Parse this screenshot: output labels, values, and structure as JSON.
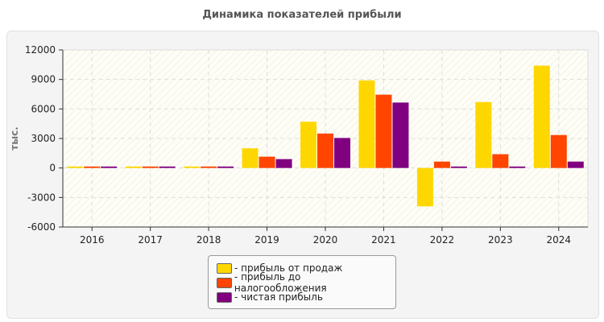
{
  "chart_data": {
    "type": "bar",
    "title": "Динамика показателей прибыли",
    "ylabel": "тыс.",
    "xlabel": "",
    "ylim": [
      -6000,
      12000
    ],
    "yticks": [
      -6000,
      -3000,
      0,
      3000,
      6000,
      9000,
      12000
    ],
    "grid": true,
    "legend_position": "bottom",
    "categories": [
      "2016",
      "2017",
      "2018",
      "2019",
      "2020",
      "2021",
      "2022",
      "2023",
      "2024"
    ],
    "series": [
      {
        "name": "- прибыль от продаж",
        "color": "#FFD700",
        "values": [
          150,
          150,
          150,
          2000,
          4700,
          8900,
          -3900,
          6700,
          10400
        ]
      },
      {
        "name": "- прибыль до налогообложения",
        "color": "#FF4500",
        "values": [
          150,
          150,
          150,
          1150,
          3500,
          7450,
          650,
          1400,
          3350
        ]
      },
      {
        "name": "- чистая прибыль",
        "color": "#800080",
        "values": [
          150,
          150,
          150,
          900,
          3050,
          6650,
          150,
          150,
          650
        ]
      }
    ]
  }
}
